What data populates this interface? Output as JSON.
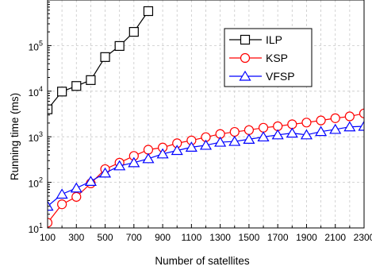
{
  "chart_data": {
    "type": "line",
    "xlabel": "Number of satellites",
    "ylabel": "Running time (ms)",
    "y_scale": "log",
    "xlim": [
      100,
      2300
    ],
    "ylim": [
      10,
      1000000
    ],
    "grid": true,
    "legend_position": "top-right",
    "x_ticks": [
      "100",
      "300",
      "500",
      "700",
      "900",
      "1100",
      "1300",
      "1500",
      "1700",
      "1900",
      "2100",
      "2300"
    ],
    "y_ticks": [
      {
        "value": 10,
        "base": "10",
        "exp": "1"
      },
      {
        "value": 100,
        "base": "10",
        "exp": "2"
      },
      {
        "value": 1000,
        "base": "10",
        "exp": "3"
      },
      {
        "value": 10000,
        "base": "10",
        "exp": "4"
      },
      {
        "value": 100000,
        "base": "10",
        "exp": "5"
      }
    ],
    "series": [
      {
        "name": "ILP",
        "color": "#000000",
        "marker": "square",
        "x": [
          100,
          200,
          300,
          400,
          500,
          600,
          700,
          800
        ],
        "values": [
          4000,
          9800,
          13000,
          17500,
          56000,
          98000,
          200000,
          570000
        ]
      },
      {
        "name": "KSP",
        "color": "#ff0000",
        "marker": "circle",
        "x": [
          100,
          200,
          300,
          400,
          500,
          600,
          700,
          800,
          900,
          1000,
          1100,
          1200,
          1300,
          1400,
          1500,
          1600,
          1700,
          1800,
          1900,
          2000,
          2100,
          2200,
          2300
        ],
        "values": [
          13,
          33,
          48,
          95,
          195,
          270,
          380,
          520,
          580,
          720,
          830,
          980,
          1150,
          1280,
          1400,
          1580,
          1700,
          1880,
          2050,
          2280,
          2550,
          2800,
          3250
        ]
      },
      {
        "name": "VFSP",
        "color": "#0000ff",
        "marker": "triangle",
        "x": [
          100,
          200,
          300,
          400,
          500,
          600,
          700,
          800,
          900,
          1000,
          1100,
          1200,
          1300,
          1400,
          1500,
          1600,
          1700,
          1800,
          1900,
          2000,
          2100,
          2200,
          2300
        ],
        "values": [
          30,
          55,
          75,
          105,
          160,
          230,
          270,
          330,
          420,
          500,
          590,
          650,
          760,
          790,
          880,
          990,
          1100,
          1200,
          1100,
          1300,
          1450,
          1650,
          1700
        ]
      }
    ]
  }
}
